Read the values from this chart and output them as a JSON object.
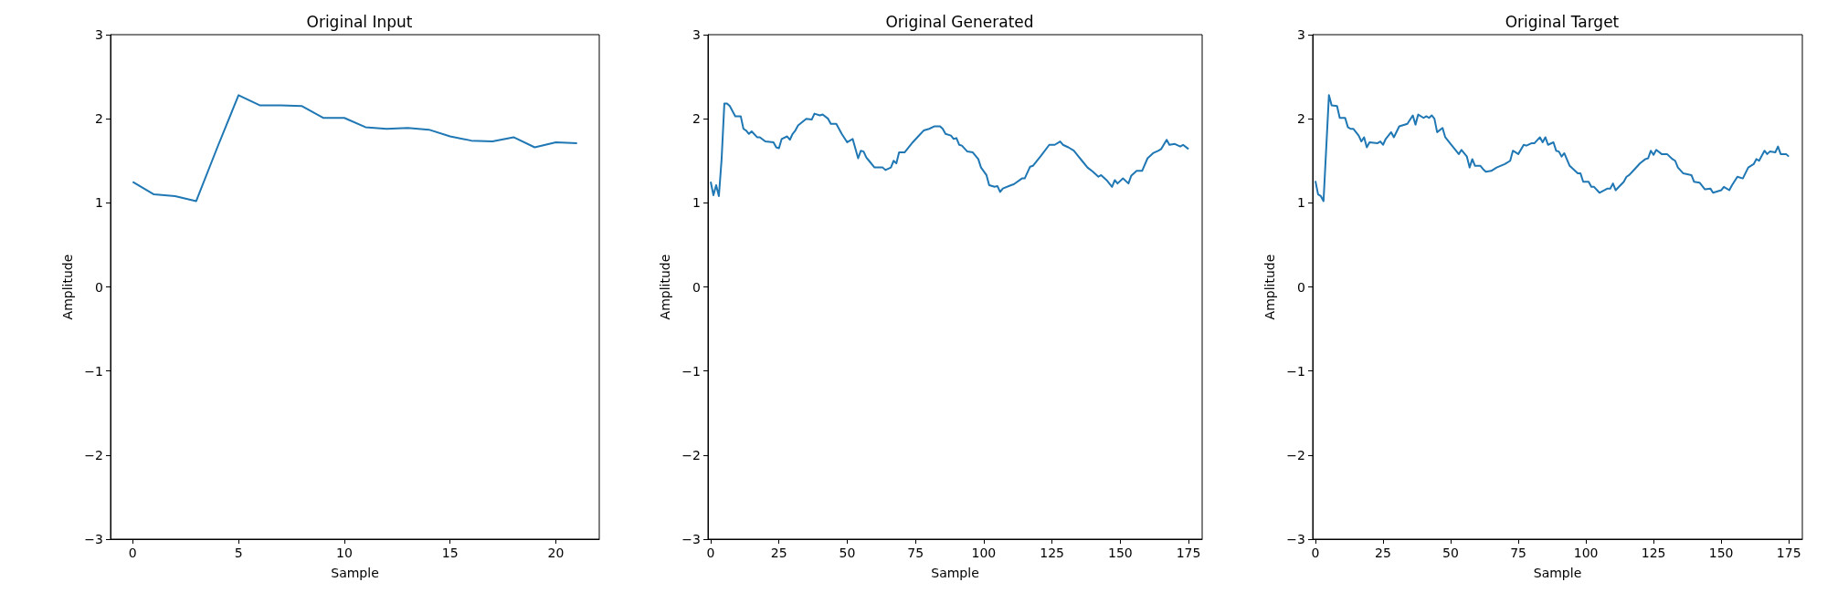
{
  "chart_data": [
    {
      "type": "line",
      "title": "Original Input",
      "xlabel": "Sample",
      "ylabel": "Amplitude",
      "color": "#1f77b4",
      "grid": false,
      "x": [
        0,
        1,
        2,
        3,
        4,
        5,
        6,
        7,
        8,
        9,
        10,
        11,
        12,
        13,
        14,
        15,
        16,
        17,
        18,
        19,
        20,
        21
      ],
      "values": [
        1.25,
        1.1,
        1.08,
        1.02,
        1.66,
        2.28,
        2.16,
        2.16,
        2.15,
        2.01,
        2.01,
        1.9,
        1.88,
        1.89,
        1.87,
        1.79,
        1.74,
        1.73,
        1.78,
        1.66,
        1.72,
        1.71
      ],
      "xlim": [
        -1.05,
        22.05
      ],
      "xticks": [
        0,
        5,
        10,
        15,
        20
      ],
      "ylim": [
        -3,
        3
      ],
      "yticks": [
        {
          "value": -3,
          "label": "−3"
        },
        {
          "value": -2,
          "label": "−2"
        },
        {
          "value": -1,
          "label": "−1"
        },
        0,
        1,
        2,
        3
      ]
    },
    {
      "type": "line",
      "title": "Original Generated",
      "xlabel": "Sample",
      "ylabel": "Amplitude",
      "color": "#1f77b4",
      "grid": false,
      "x": [
        0,
        1,
        2,
        3,
        4,
        5,
        6,
        7,
        9,
        11,
        12,
        13,
        14,
        15,
        17,
        18,
        20,
        23,
        24,
        25,
        26,
        28,
        29,
        30,
        31,
        32,
        35,
        37,
        38,
        40,
        41,
        43,
        44,
        46,
        48,
        50,
        52,
        54,
        55,
        56,
        57,
        58,
        60,
        63,
        64,
        66,
        67,
        68,
        69,
        71,
        74,
        76,
        78,
        80,
        82,
        84,
        85,
        86,
        88,
        89,
        90,
        91,
        92,
        94,
        96,
        98,
        99,
        101,
        102,
        104,
        105,
        106,
        107,
        110,
        111,
        114,
        115,
        117,
        118,
        120,
        121,
        124,
        126,
        128,
        129,
        131,
        133,
        134,
        136,
        138,
        140,
        142,
        143,
        145,
        147,
        148,
        149,
        151,
        153,
        154,
        156,
        158,
        160,
        162,
        164,
        165,
        167,
        168,
        170,
        172,
        173,
        175
      ],
      "values": [
        1.25,
        1.09,
        1.21,
        1.08,
        1.52,
        2.18,
        2.18,
        2.15,
        2.03,
        2.03,
        1.88,
        1.86,
        1.82,
        1.85,
        1.78,
        1.78,
        1.73,
        1.72,
        1.66,
        1.65,
        1.76,
        1.79,
        1.75,
        1.82,
        1.86,
        1.92,
        2.0,
        1.99,
        2.06,
        2.04,
        2.05,
        2.0,
        1.94,
        1.94,
        1.82,
        1.72,
        1.76,
        1.53,
        1.62,
        1.61,
        1.54,
        1.5,
        1.42,
        1.42,
        1.39,
        1.42,
        1.5,
        1.47,
        1.6,
        1.6,
        1.72,
        1.79,
        1.86,
        1.88,
        1.91,
        1.91,
        1.88,
        1.82,
        1.8,
        1.76,
        1.77,
        1.69,
        1.68,
        1.61,
        1.6,
        1.52,
        1.42,
        1.33,
        1.21,
        1.19,
        1.2,
        1.13,
        1.17,
        1.21,
        1.22,
        1.29,
        1.29,
        1.43,
        1.44,
        1.52,
        1.56,
        1.69,
        1.69,
        1.73,
        1.69,
        1.66,
        1.62,
        1.58,
        1.5,
        1.42,
        1.37,
        1.31,
        1.33,
        1.27,
        1.19,
        1.27,
        1.23,
        1.29,
        1.23,
        1.32,
        1.38,
        1.38,
        1.53,
        1.59,
        1.62,
        1.64,
        1.75,
        1.69,
        1.7,
        1.67,
        1.69,
        1.64
      ],
      "xlim": [
        -1,
        180
      ],
      "xticks": [
        0,
        25,
        50,
        75,
        100,
        125,
        150,
        175
      ],
      "ylim": [
        -3,
        3
      ],
      "yticks": [
        {
          "value": -3,
          "label": "−3"
        },
        {
          "value": -2,
          "label": "−2"
        },
        {
          "value": -1,
          "label": "−1"
        },
        0,
        1,
        2,
        3
      ]
    },
    {
      "type": "line",
      "title": "Original Target",
      "xlabel": "Sample",
      "ylabel": "Amplitude",
      "color": "#1f77b4",
      "grid": false,
      "x": [
        0,
        1,
        2,
        3,
        5,
        6,
        8,
        9,
        11,
        12,
        13,
        14,
        16,
        17,
        18,
        19,
        20,
        23,
        24,
        25,
        26,
        28,
        29,
        31,
        34,
        36,
        37,
        38,
        40,
        41,
        42,
        43,
        44,
        45,
        47,
        48,
        50,
        53,
        54,
        56,
        57,
        58,
        59,
        61,
        62,
        63,
        65,
        67,
        70,
        72,
        73,
        75,
        77,
        78,
        80,
        81,
        83,
        84,
        85,
        86,
        88,
        89,
        90,
        91,
        92,
        94,
        95,
        97,
        98,
        99,
        101,
        102,
        103,
        105,
        108,
        109,
        110,
        111,
        114,
        115,
        116,
        118,
        120,
        122,
        123,
        124,
        125,
        126,
        128,
        130,
        132,
        133,
        134,
        136,
        139,
        140,
        142,
        144,
        146,
        147,
        150,
        151,
        153,
        154,
        156,
        158,
        160,
        162,
        163,
        164,
        166,
        167,
        168,
        170,
        171,
        172,
        174,
        175
      ],
      "values": [
        1.26,
        1.1,
        1.08,
        1.02,
        2.28,
        2.16,
        2.15,
        2.01,
        2.01,
        1.9,
        1.88,
        1.88,
        1.8,
        1.73,
        1.78,
        1.66,
        1.72,
        1.71,
        1.73,
        1.69,
        1.76,
        1.84,
        1.78,
        1.91,
        1.94,
        2.04,
        1.93,
        2.05,
        2.01,
        2.03,
        2.01,
        2.04,
        2.0,
        1.84,
        1.89,
        1.78,
        1.7,
        1.58,
        1.63,
        1.55,
        1.42,
        1.52,
        1.44,
        1.44,
        1.4,
        1.37,
        1.38,
        1.42,
        1.46,
        1.5,
        1.62,
        1.58,
        1.69,
        1.68,
        1.71,
        1.71,
        1.78,
        1.72,
        1.78,
        1.69,
        1.72,
        1.62,
        1.61,
        1.55,
        1.59,
        1.44,
        1.41,
        1.35,
        1.35,
        1.25,
        1.25,
        1.19,
        1.19,
        1.12,
        1.17,
        1.17,
        1.23,
        1.15,
        1.25,
        1.31,
        1.33,
        1.4,
        1.47,
        1.52,
        1.53,
        1.62,
        1.57,
        1.63,
        1.58,
        1.58,
        1.52,
        1.5,
        1.42,
        1.35,
        1.33,
        1.25,
        1.24,
        1.16,
        1.17,
        1.12,
        1.15,
        1.19,
        1.15,
        1.21,
        1.31,
        1.29,
        1.42,
        1.46,
        1.52,
        1.5,
        1.62,
        1.58,
        1.61,
        1.6,
        1.67,
        1.58,
        1.58,
        1.55
      ],
      "xlim": [
        -1,
        180
      ],
      "xticks": [
        0,
        25,
        50,
        75,
        100,
        125,
        150,
        175
      ],
      "ylim": [
        -3,
        3
      ],
      "yticks": [
        {
          "value": -3,
          "label": "−3"
        },
        {
          "value": -2,
          "label": "−2"
        },
        {
          "value": -1,
          "label": "−1"
        },
        0,
        1,
        2,
        3
      ]
    }
  ]
}
